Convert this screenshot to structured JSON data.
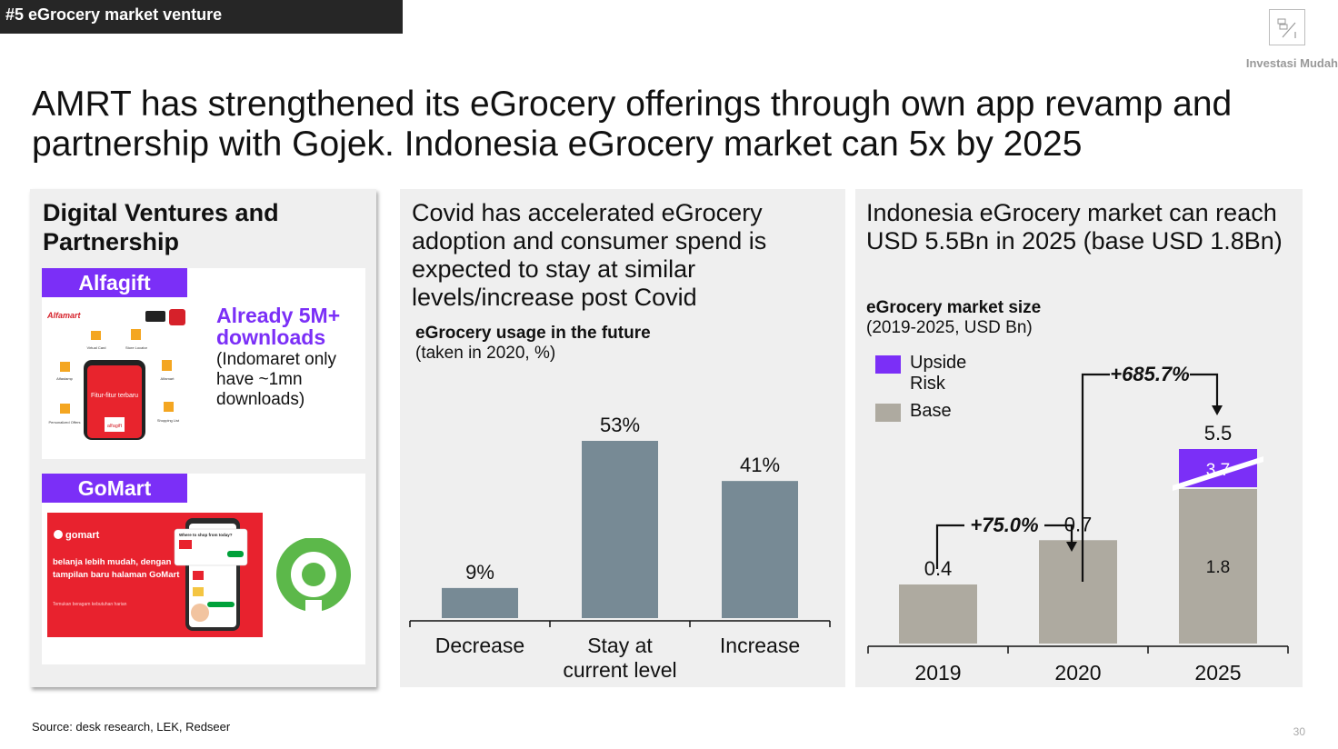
{
  "header": {
    "tag": "#5 eGrocery market venture",
    "brand": "Investasi Mudah",
    "headline": "AMRT has strengthened its eGrocery offerings through own app revamp and partnership with Gojek. Indonesia eGrocery market can 5x by 2025"
  },
  "left_panel": {
    "title": "Digital Ventures and Partnership",
    "alfagift": {
      "label": "Alfagift",
      "highlight": "Already 5M+ downloads",
      "note": "(Indomaret only have ~1mn downloads)",
      "app_brand": "Alfamart",
      "app_screen_text": "Fitur-fitur terbaru",
      "app_logo_text": "alfagift",
      "feature_labels": [
        "Virtual Card",
        "Store Locator",
        "Alfastamp",
        "Alfamart",
        "Personalized Offers",
        "Shopping List"
      ]
    },
    "gomart": {
      "label": "GoMart",
      "brand": "gomart",
      "banner_text": "belanja lebih mudah, dengan tampilan baru halaman GoMart",
      "banner_small": "Temukan beragam kebutuhan harian",
      "phone_header": "Where to shop from today?"
    }
  },
  "middle_panel": {
    "heading": "Covid has accelerated eGrocery adoption and consumer spend is expected to stay at similar levels/increase post Covid",
    "chart_title": "eGrocery usage in the future",
    "chart_subtitle": "(taken in 2020, %)"
  },
  "right_panel": {
    "heading": "Indonesia eGrocery market can reach USD 5.5Bn in 2025 (base USD 1.8Bn)",
    "chart_title": "eGrocery market size",
    "chart_subtitle": "(2019-2025, USD Bn)",
    "legend": {
      "upside": "Upside Risk",
      "base": "Base"
    },
    "growth_1": "+75.0%",
    "growth_2": "+685.7%"
  },
  "footer": {
    "source": "Source: desk research, LEK, Redseer",
    "page": "30"
  },
  "chart_data": [
    {
      "type": "bar",
      "title": "eGrocery usage in the future",
      "subtitle": "(taken in 2020, %)",
      "categories": [
        "Decrease",
        "Stay at current level",
        "Increase"
      ],
      "category_lines": [
        [
          "Decrease"
        ],
        [
          "Stay at",
          "current level"
        ],
        [
          "Increase"
        ]
      ],
      "values": [
        9,
        53,
        41
      ],
      "value_labels": [
        "9%",
        "53%",
        "41%"
      ],
      "ylim": [
        0,
        60
      ],
      "bar_color": "#778a95"
    },
    {
      "type": "bar",
      "stacked": true,
      "title": "eGrocery market size",
      "subtitle": "(2019-2025, USD Bn)",
      "categories": [
        "2019",
        "2020",
        "2025"
      ],
      "series": [
        {
          "name": "Base",
          "values": [
            0.4,
            0.7,
            1.8
          ],
          "color": "#aeaaa0"
        },
        {
          "name": "Upside Risk",
          "values": [
            0,
            0,
            3.7
          ],
          "color": "#7b2ff7"
        }
      ],
      "total_labels": [
        "0.4",
        "0.7",
        "5.5"
      ],
      "segment_labels": {
        "base_2025": "1.8",
        "upside_2025": "3.7"
      },
      "annotations": [
        {
          "text": "+75.0%",
          "from": "2019",
          "to": "2020"
        },
        {
          "text": "+685.7%",
          "from": "2020",
          "to": "2025"
        }
      ],
      "legend_position": "top-left",
      "axis_break": true
    }
  ]
}
